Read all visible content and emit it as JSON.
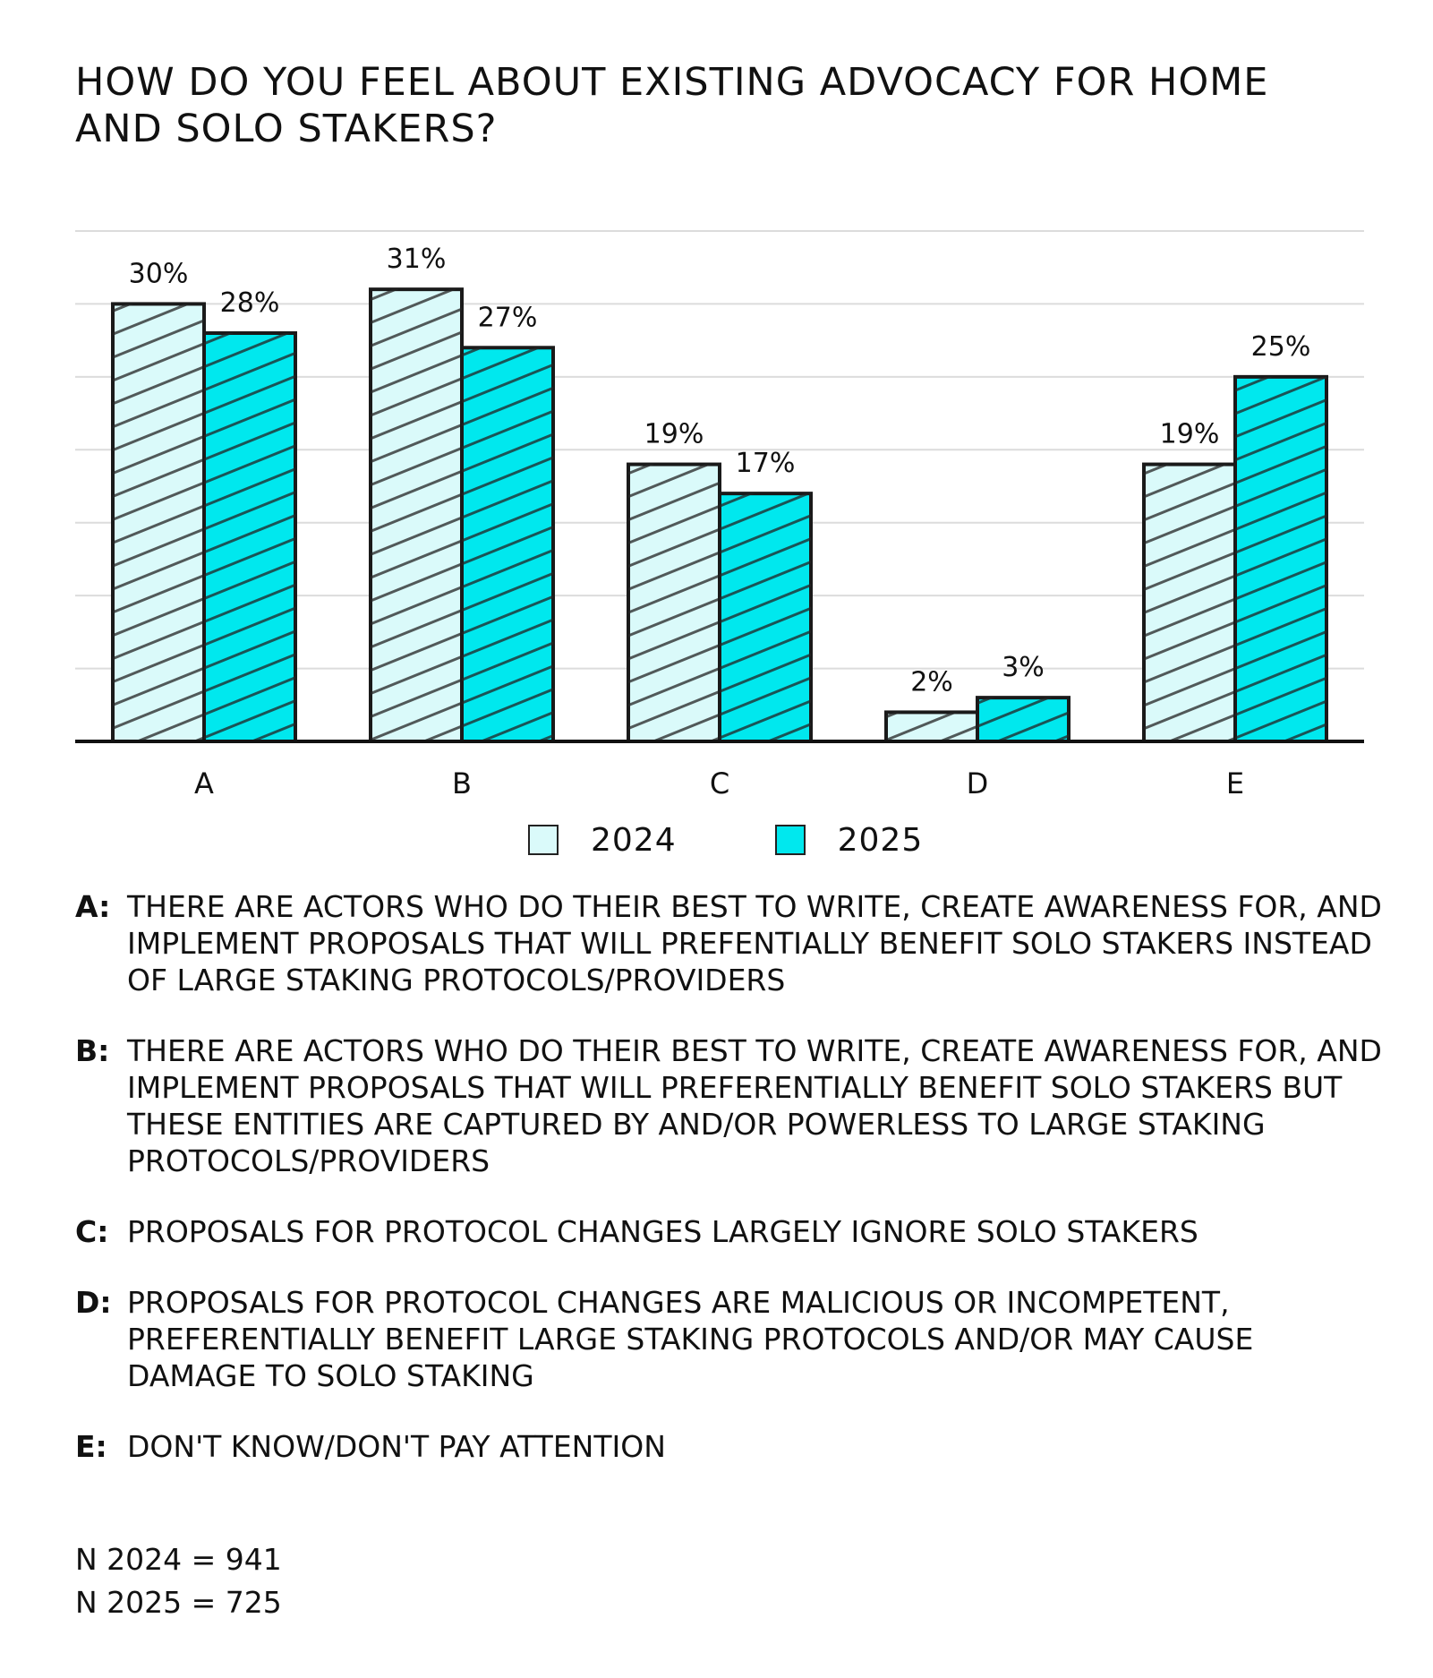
{
  "title": "How do you feel about existing advocacy for home and solo stakers?",
  "chart_data": {
    "type": "bar",
    "title": "How do you feel about existing advocacy for home and solo stakers?",
    "categories": [
      "A",
      "B",
      "C",
      "D",
      "E"
    ],
    "series": [
      {
        "name": "2024",
        "values": [
          30,
          31,
          19,
          2,
          19
        ],
        "labels": [
          "30%",
          "31%",
          "19%",
          "2%",
          "19%"
        ],
        "color": "#dafafa"
      },
      {
        "name": "2025",
        "values": [
          28,
          27,
          17,
          3,
          25
        ],
        "labels": [
          "28%",
          "27%",
          "17%",
          "3%",
          "25%"
        ],
        "color": "#00e8ee"
      }
    ],
    "ylim": [
      0,
      35
    ],
    "xlabel": "",
    "ylabel": "",
    "grid": true,
    "legend": "bottom"
  },
  "legend": [
    {
      "label": "2024",
      "color": "#dafafa"
    },
    {
      "label": "2025",
      "color": "#00e8ee"
    }
  ],
  "definitions": [
    {
      "key": "A:",
      "text": "There are actors who do their best to write, create awareness for, and implement proposals that will prefentially benefit solo stakers instead of large staking protocols/providers"
    },
    {
      "key": "B:",
      "text": "There are actors who do their best to write, create awareness for, and implement proposals that will preferentially benefit solo stakers but these entities are captured by and/or powerless to large staking protocols/providers"
    },
    {
      "key": "C:",
      "text": "Proposals for protocol changes largely ignore solo stakers"
    },
    {
      "key": "D:",
      "text": "Proposals for protocol changes are malicious or incompetent, preferentially benefit large staking protocols and/or may cause damage to solo staking"
    },
    {
      "key": "E:",
      "text": "Don't know/don't pay attention"
    }
  ],
  "sample_sizes": [
    "N 2024 = 941",
    "N 2025 = 725"
  ]
}
